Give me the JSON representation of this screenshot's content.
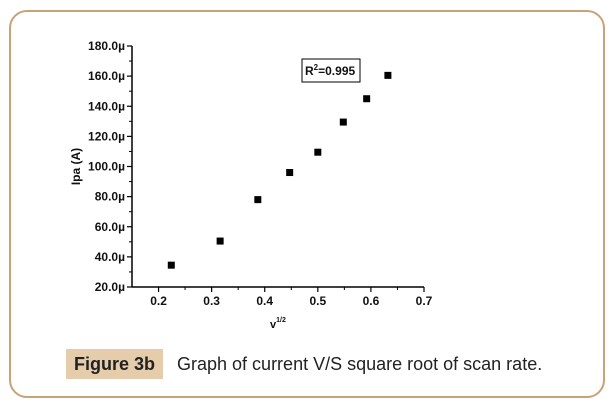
{
  "chart_data": {
    "type": "scatter",
    "xlabel_base": "v",
    "xlabel_exp": "1/2",
    "ylabel": "Ipa (A)",
    "xlim": [
      0.15,
      0.7
    ],
    "ylim": [
      20.0,
      180.0
    ],
    "x_ticks": [
      "0.2",
      "0.3",
      "0.4",
      "0.5",
      "0.6",
      "0.7"
    ],
    "y_ticks": [
      "20.0µ",
      "40.0µ",
      "60.0µ",
      "80.0µ",
      "100.0µ",
      "120.0µ",
      "140.0µ",
      "160.0µ",
      "180.0µ"
    ],
    "points": [
      {
        "x": 0.224,
        "y": 34.5
      },
      {
        "x": 0.316,
        "y": 50.5
      },
      {
        "x": 0.387,
        "y": 78.0
      },
      {
        "x": 0.447,
        "y": 96.0
      },
      {
        "x": 0.5,
        "y": 109.5
      },
      {
        "x": 0.548,
        "y": 129.5
      },
      {
        "x": 0.592,
        "y": 145.0
      },
      {
        "x": 0.632,
        "y": 160.5
      }
    ],
    "annotation_base": "R",
    "annotation_sup": "2",
    "annotation_rest": "=0.995",
    "marker_color": "#000000"
  },
  "caption": {
    "label": "Figure 3b",
    "text": "Graph of current V/S square root of scan rate."
  },
  "colors": {
    "frame_border": "#c9a27a",
    "label_bg": "#e5ccaa"
  }
}
